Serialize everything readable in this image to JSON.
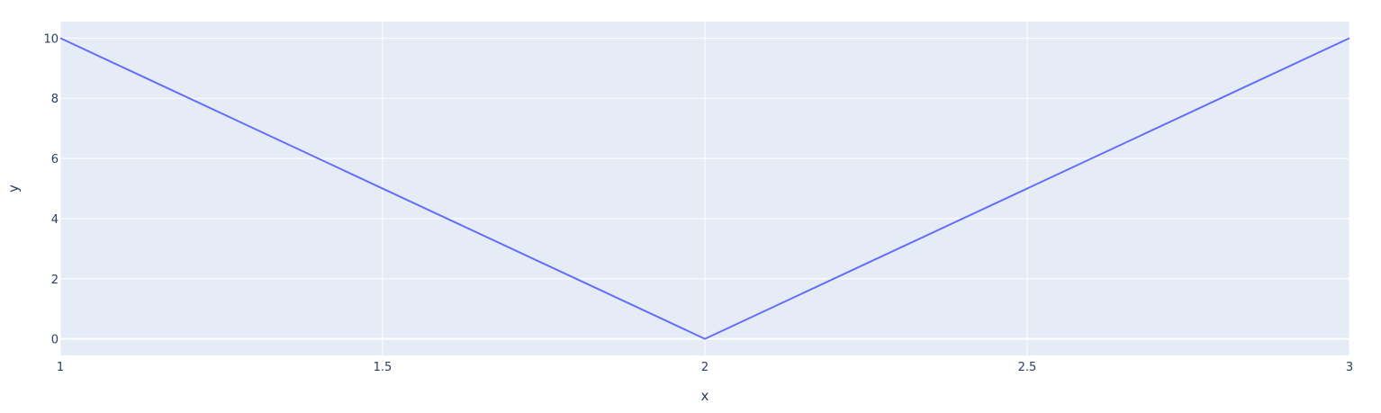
{
  "chart_data": {
    "type": "line",
    "xlabel": "x",
    "ylabel": "y",
    "xlim": [
      1,
      3
    ],
    "ylim": [
      -0.55,
      10.55
    ],
    "x_ticks": [
      1,
      1.5,
      2,
      2.5,
      3
    ],
    "x_tick_labels": [
      "1",
      "1.5",
      "2",
      "2.5",
      "3"
    ],
    "y_ticks": [
      0,
      2,
      4,
      6,
      8,
      10
    ],
    "y_tick_labels": [
      "0",
      "2",
      "4",
      "6",
      "8",
      "10"
    ],
    "grid": true,
    "legend": "none",
    "series": [
      {
        "x": [
          1,
          2,
          3
        ],
        "y": [
          10,
          0,
          10
        ],
        "color": "#636efa"
      }
    ],
    "colors": {
      "plot_background": "#e5ecf6",
      "paper_background": "#ffffff",
      "grid": "#ffffff",
      "text": "#2a3f5f"
    }
  }
}
